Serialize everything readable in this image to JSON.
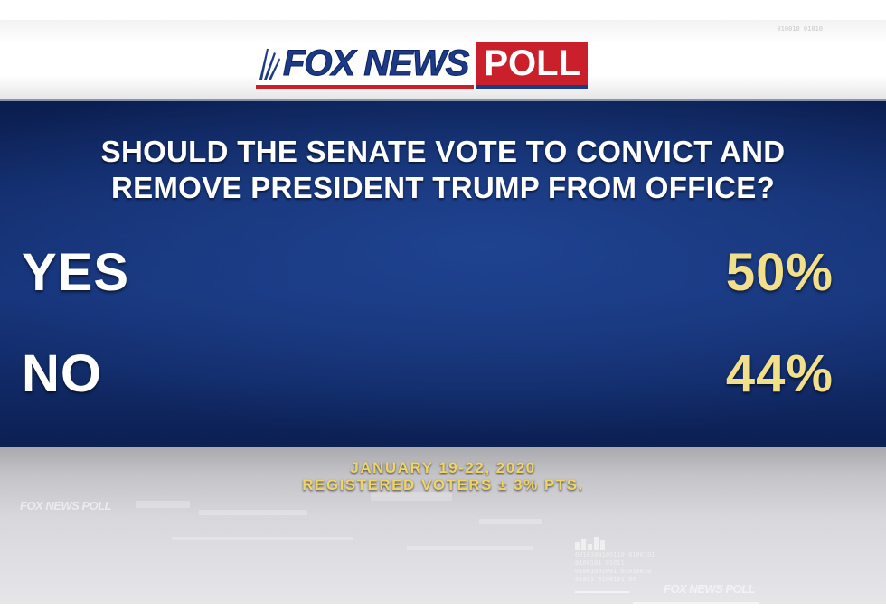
{
  "header": {
    "code_text": "010010 01010",
    "logo": {
      "brand": "FOX NEWS",
      "suffix": "POLL",
      "colors": {
        "blue": "#1d3a86",
        "red": "#c9202b"
      }
    }
  },
  "poll": {
    "question_line1": "SHOULD THE SENATE VOTE TO CONVICT AND",
    "question_line2": "REMOVE PRESIDENT TRUMP FROM OFFICE?",
    "results": [
      {
        "label": "YES",
        "value": "50%"
      },
      {
        "label": "NO",
        "value": "44%"
      }
    ],
    "value_color": "#f2df8a",
    "panel_color": "#163378"
  },
  "footer": {
    "date": "JANUARY 19-22, 2020",
    "sample": "REGISTERED VOTERS ± 3% PTS."
  },
  "background": {
    "watermark_left": "FOX NEWS POLL",
    "watermark_right": "FOX NEWS POLL",
    "code_lines": [
      "0010100100110 0100101",
      "0100101 01011",
      "01001001001 01010010",
      "01011 0100101 00"
    ]
  }
}
